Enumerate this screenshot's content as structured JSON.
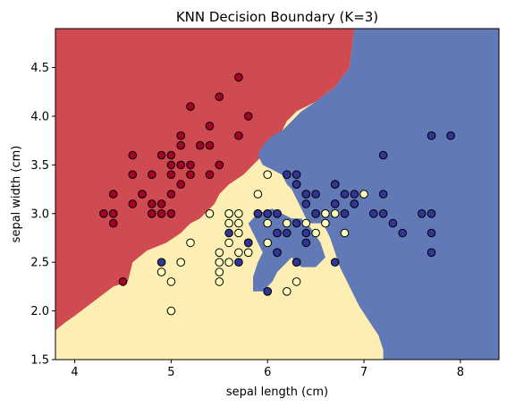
{
  "chart_data": {
    "type": "scatter",
    "title": "KNN Decision Boundary (K=3)",
    "xlabel": "sepal length (cm)",
    "ylabel": "sepal width (cm)",
    "xlim": [
      3.8,
      8.4
    ],
    "ylim": [
      1.5,
      4.9
    ],
    "xticks": [
      "4",
      "5",
      "6",
      "7",
      "8"
    ],
    "yticks": [
      "1.5",
      "2.0",
      "2.5",
      "3.0",
      "3.5",
      "4.0",
      "4.5"
    ],
    "grid": false,
    "legend": "none",
    "region_colors": [
      "#d04a51",
      "#fdefb3",
      "#6279b7"
    ],
    "point_colors": [
      "#a50026",
      "#ffffbf",
      "#313695"
    ],
    "regions": [
      {
        "class": 0,
        "polygon": [
          [
            3.8,
            4.9
          ],
          [
            6.9,
            4.9
          ],
          [
            6.85,
            4.5
          ],
          [
            6.7,
            4.3
          ],
          [
            6.5,
            4.15
          ],
          [
            6.3,
            4.05
          ],
          [
            6.2,
            3.95
          ],
          [
            6.15,
            3.85
          ],
          [
            6.1,
            3.75
          ],
          [
            6.0,
            3.7
          ],
          [
            5.95,
            3.6
          ],
          [
            5.85,
            3.5
          ],
          [
            5.75,
            3.4
          ],
          [
            5.6,
            3.3
          ],
          [
            5.5,
            3.2
          ],
          [
            5.45,
            3.1
          ],
          [
            5.3,
            2.95
          ],
          [
            5.2,
            2.9
          ],
          [
            5.1,
            2.8
          ],
          [
            4.95,
            2.7
          ],
          [
            4.75,
            2.62
          ],
          [
            4.6,
            2.5
          ],
          [
            4.55,
            2.3
          ],
          [
            4.4,
            2.25
          ],
          [
            4.2,
            2.1
          ],
          [
            4.0,
            1.95
          ],
          [
            3.9,
            1.88
          ],
          [
            3.8,
            1.8
          ]
        ]
      },
      {
        "class": 2,
        "polygon": [
          [
            6.9,
            4.9
          ],
          [
            8.4,
            4.9
          ],
          [
            8.4,
            1.5
          ],
          [
            7.2,
            1.5
          ],
          [
            7.2,
            1.6
          ],
          [
            7.15,
            1.75
          ],
          [
            7.05,
            1.9
          ],
          [
            6.95,
            2.05
          ],
          [
            6.85,
            2.25
          ],
          [
            6.75,
            2.45
          ],
          [
            6.7,
            2.6
          ],
          [
            6.65,
            2.75
          ],
          [
            6.6,
            2.85
          ],
          [
            6.55,
            2.95
          ],
          [
            6.55,
            3.05
          ],
          [
            6.6,
            3.15
          ],
          [
            6.7,
            3.2
          ],
          [
            6.85,
            3.22
          ],
          [
            7.0,
            3.2
          ],
          [
            7.1,
            3.15
          ],
          [
            7.15,
            3.05
          ],
          [
            7.2,
            2.95
          ],
          [
            7.0,
            2.95
          ],
          [
            6.85,
            3.0
          ],
          [
            6.8,
            3.05
          ],
          [
            6.75,
            3.0
          ],
          [
            6.65,
            2.95
          ],
          [
            6.55,
            2.9
          ],
          [
            6.45,
            2.9
          ],
          [
            6.4,
            2.95
          ],
          [
            6.35,
            3.05
          ],
          [
            6.3,
            3.15
          ],
          [
            6.25,
            3.25
          ],
          [
            6.2,
            3.3
          ],
          [
            6.15,
            3.4
          ],
          [
            6.05,
            3.45
          ],
          [
            5.95,
            3.5
          ],
          [
            5.9,
            3.6
          ],
          [
            5.95,
            3.7
          ],
          [
            6.05,
            3.8
          ],
          [
            6.15,
            3.85
          ],
          [
            6.25,
            3.95
          ],
          [
            6.35,
            4.05
          ],
          [
            6.5,
            4.15
          ],
          [
            6.7,
            4.3
          ],
          [
            6.85,
            4.5
          ]
        ]
      },
      {
        "class": 2,
        "polygon": [
          [
            5.9,
            3.0
          ],
          [
            6.05,
            3.05
          ],
          [
            6.15,
            3.0
          ],
          [
            6.25,
            2.95
          ],
          [
            6.35,
            2.95
          ],
          [
            6.45,
            2.85
          ],
          [
            6.55,
            2.7
          ],
          [
            6.6,
            2.55
          ],
          [
            6.5,
            2.45
          ],
          [
            6.35,
            2.45
          ],
          [
            6.25,
            2.55
          ],
          [
            6.2,
            2.5
          ],
          [
            6.1,
            2.4
          ],
          [
            6.05,
            2.3
          ],
          [
            5.95,
            2.2
          ],
          [
            5.85,
            2.2
          ],
          [
            5.85,
            2.35
          ],
          [
            5.9,
            2.5
          ],
          [
            5.95,
            2.6
          ],
          [
            5.9,
            2.7
          ],
          [
            5.85,
            2.8
          ],
          [
            5.8,
            2.9
          ]
        ]
      }
    ],
    "classes": [
      {
        "class": 0,
        "points": [
          [
            5.1,
            3.5
          ],
          [
            4.9,
            3.0
          ],
          [
            4.7,
            3.2
          ],
          [
            4.6,
            3.1
          ],
          [
            5.0,
            3.6
          ],
          [
            5.4,
            3.9
          ],
          [
            4.6,
            3.4
          ],
          [
            5.0,
            3.4
          ],
          [
            4.4,
            2.9
          ],
          [
            4.9,
            3.1
          ],
          [
            5.4,
            3.7
          ],
          [
            4.8,
            3.4
          ],
          [
            4.8,
            3.0
          ],
          [
            4.3,
            3.0
          ],
          [
            5.8,
            4.0
          ],
          [
            5.7,
            4.4
          ],
          [
            5.1,
            3.8
          ],
          [
            5.7,
            3.8
          ],
          [
            5.4,
            3.4
          ],
          [
            5.1,
            3.7
          ],
          [
            5.0,
            3.0
          ],
          [
            5.2,
            3.5
          ],
          [
            5.2,
            3.4
          ],
          [
            4.7,
            3.2
          ],
          [
            5.5,
            4.2
          ],
          [
            5.5,
            3.5
          ],
          [
            4.4,
            3.0
          ],
          [
            4.5,
            2.3
          ],
          [
            4.4,
            3.2
          ],
          [
            5.0,
            3.5
          ],
          [
            4.8,
            3.1
          ],
          [
            5.2,
            4.1
          ],
          [
            5.3,
            3.7
          ],
          [
            5.1,
            3.3
          ],
          [
            5.0,
            3.2
          ],
          [
            4.6,
            3.6
          ],
          [
            4.9,
            3.6
          ],
          [
            5.5,
            3.5
          ],
          [
            4.8,
            3.0
          ]
        ]
      },
      {
        "class": 1,
        "points": [
          [
            7.0,
            3.2
          ],
          [
            5.5,
            2.3
          ],
          [
            6.5,
            2.8
          ],
          [
            5.7,
            2.8
          ],
          [
            6.3,
            3.3
          ],
          [
            4.9,
            2.4
          ],
          [
            6.6,
            2.9
          ],
          [
            5.2,
            2.7
          ],
          [
            5.0,
            2.0
          ],
          [
            5.9,
            3.0
          ],
          [
            6.0,
            2.2
          ],
          [
            5.6,
            2.9
          ],
          [
            6.7,
            3.1
          ],
          [
            5.6,
            3.0
          ],
          [
            5.8,
            2.7
          ],
          [
            6.2,
            2.2
          ],
          [
            5.6,
            2.5
          ],
          [
            5.9,
            3.2
          ],
          [
            6.1,
            2.8
          ],
          [
            6.3,
            2.5
          ],
          [
            6.4,
            2.9
          ],
          [
            6.6,
            3.0
          ],
          [
            6.8,
            2.8
          ],
          [
            6.7,
            3.0
          ],
          [
            6.0,
            2.9
          ],
          [
            5.7,
            2.6
          ],
          [
            5.5,
            2.4
          ],
          [
            5.5,
            2.5
          ],
          [
            6.0,
            2.7
          ],
          [
            5.4,
            3.0
          ],
          [
            6.0,
            3.4
          ],
          [
            6.3,
            2.3
          ],
          [
            5.6,
            3.0
          ],
          [
            5.5,
            2.6
          ],
          [
            6.1,
            3.0
          ],
          [
            5.8,
            2.6
          ],
          [
            5.0,
            2.3
          ],
          [
            5.6,
            2.7
          ],
          [
            5.7,
            3.0
          ],
          [
            5.7,
            2.9
          ],
          [
            6.2,
            2.9
          ],
          [
            5.1,
            2.5
          ],
          [
            6.0,
            3.0
          ],
          [
            6.1,
            2.6
          ]
        ]
      },
      {
        "class": 2,
        "points": [
          [
            6.3,
            3.3
          ],
          [
            5.8,
            2.7
          ],
          [
            7.1,
            3.0
          ],
          [
            6.3,
            2.9
          ],
          [
            6.5,
            3.0
          ],
          [
            7.6,
            3.0
          ],
          [
            4.9,
            2.5
          ],
          [
            7.3,
            2.9
          ],
          [
            6.7,
            2.5
          ],
          [
            7.2,
            3.6
          ],
          [
            6.5,
            3.2
          ],
          [
            6.4,
            2.7
          ],
          [
            6.8,
            3.0
          ],
          [
            5.7,
            2.5
          ],
          [
            6.4,
            3.2
          ],
          [
            7.7,
            3.8
          ],
          [
            7.7,
            2.6
          ],
          [
            6.0,
            2.2
          ],
          [
            6.9,
            3.2
          ],
          [
            5.6,
            2.8
          ],
          [
            7.7,
            2.8
          ],
          [
            6.7,
            3.3
          ],
          [
            7.2,
            3.2
          ],
          [
            6.2,
            2.8
          ],
          [
            6.1,
            3.0
          ],
          [
            6.4,
            2.8
          ],
          [
            7.2,
            3.0
          ],
          [
            7.4,
            2.8
          ],
          [
            7.9,
            3.8
          ],
          [
            6.1,
            2.6
          ],
          [
            7.7,
            3.0
          ],
          [
            6.4,
            3.1
          ],
          [
            6.9,
            3.1
          ],
          [
            5.8,
            2.7
          ],
          [
            6.8,
            3.2
          ],
          [
            6.7,
            3.3
          ],
          [
            6.3,
            2.5
          ],
          [
            6.5,
            3.0
          ],
          [
            6.2,
            3.4
          ],
          [
            5.9,
            3.0
          ],
          [
            6.3,
            3.4
          ],
          [
            6.0,
            3.0
          ],
          [
            6.9,
            3.1
          ],
          [
            6.7,
            3.1
          ],
          [
            6.4,
            3.2
          ],
          [
            6.1,
            2.8
          ]
        ]
      }
    ]
  }
}
